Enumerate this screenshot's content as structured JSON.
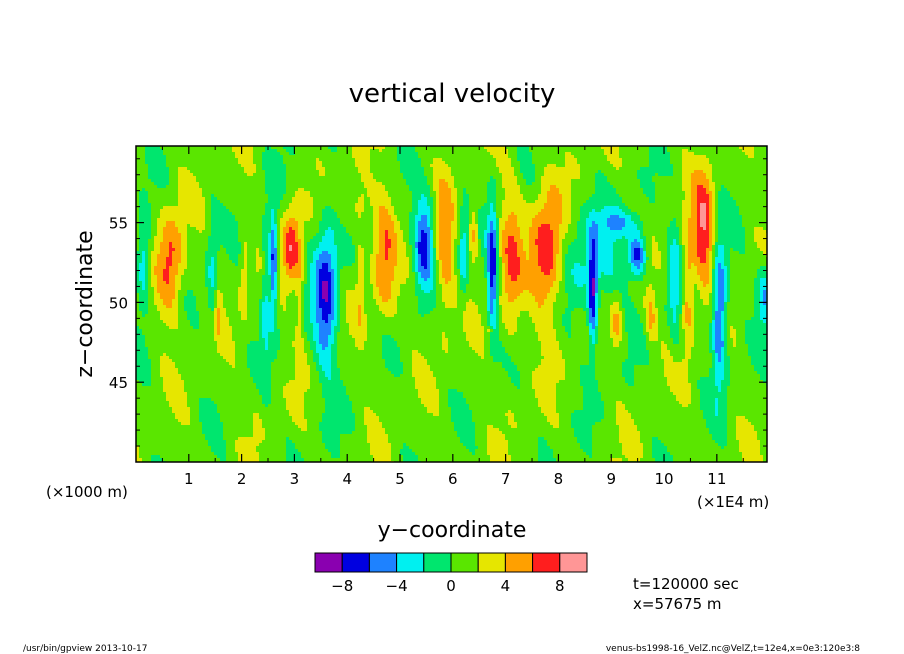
{
  "chart_data": {
    "type": "heatmap",
    "title": "vertical velocity",
    "xlabel": "y−coordinate",
    "ylabel": "z−coordinate",
    "x_unit_left": "(×1000 m)",
    "x_unit_right": "(×1E4 m)",
    "xlim": [
      0,
      11.95
    ],
    "ylim": [
      40,
      59.8
    ],
    "xticks": [
      1,
      2,
      3,
      4,
      5,
      6,
      7,
      8,
      9,
      10,
      11
    ],
    "xtick_labels": [
      "1",
      "2",
      "3",
      "4",
      "5",
      "6",
      "7",
      "8",
      "9",
      "10",
      "11"
    ],
    "yticks": [
      45,
      50,
      55
    ],
    "ytick_labels": [
      "45",
      "50",
      "55"
    ],
    "colorbar": {
      "levels": [
        -10,
        -8,
        -6,
        -4,
        -2,
        0,
        2,
        4,
        6,
        8,
        10
      ],
      "labels": [
        "−8",
        "−4",
        "0",
        "4",
        "8"
      ],
      "label_values": [
        -8,
        -4,
        0,
        4,
        8
      ],
      "colors": [
        "#8a00b0",
        "#0000e0",
        "#1e82ff",
        "#00f0f0",
        "#00e66e",
        "#5ae600",
        "#e6e600",
        "#ffa000",
        "#ff1e1e",
        "#ff9696"
      ]
    },
    "background_value": 1,
    "features": [
      {
        "y": 0.15,
        "z": 52.5,
        "amp": -5.5,
        "sy": 0.1,
        "sz": 2.0
      },
      {
        "y": 0.65,
        "z": 52.3,
        "amp": 6.0,
        "sy": 0.18,
        "sz": 2.3
      },
      {
        "y": 1.45,
        "z": 51.5,
        "amp": -3.5,
        "sy": 0.08,
        "sz": 3.0
      },
      {
        "y": 1.55,
        "z": 49.5,
        "amp": 3.0,
        "sy": 0.05,
        "sz": 1.5
      },
      {
        "y": 2.05,
        "z": 51.8,
        "amp": 2.5,
        "sy": 0.06,
        "sz": 2.0
      },
      {
        "y": 2.45,
        "z": 50.8,
        "amp": -3.5,
        "sy": 0.05,
        "sz": 3.8
      },
      {
        "y": 2.6,
        "z": 52.5,
        "amp": -8.5,
        "sy": 0.06,
        "sz": 2.5
      },
      {
        "y": 2.95,
        "z": 53.5,
        "amp": 6.5,
        "sy": 0.12,
        "sz": 1.8
      },
      {
        "y": 3.1,
        "z": 50.0,
        "amp": 2.5,
        "sy": 0.05,
        "sz": 2.5
      },
      {
        "y": 3.6,
        "z": 50.5,
        "amp": -8.5,
        "sy": 0.16,
        "sz": 3.2
      },
      {
        "y": 4.25,
        "z": 51.5,
        "amp": 2.5,
        "sy": 0.06,
        "sz": 3.0
      },
      {
        "y": 4.7,
        "z": 53.0,
        "amp": 4.5,
        "sy": 0.15,
        "sz": 2.8
      },
      {
        "y": 5.45,
        "z": 53.8,
        "amp": -8.0,
        "sy": 0.13,
        "sz": 2.0
      },
      {
        "y": 5.85,
        "z": 53.0,
        "amp": 4.5,
        "sy": 0.12,
        "sz": 3.0
      },
      {
        "y": 6.2,
        "z": 53.0,
        "amp": -4.5,
        "sy": 0.06,
        "sz": 2.0
      },
      {
        "y": 6.4,
        "z": 54.5,
        "amp": 4.5,
        "sy": 0.06,
        "sz": 1.2
      },
      {
        "y": 6.75,
        "z": 52.0,
        "amp": -8.5,
        "sy": 0.07,
        "sz": 2.8
      },
      {
        "y": 7.1,
        "z": 52.5,
        "amp": 4.5,
        "sy": 0.15,
        "sz": 3.5
      },
      {
        "y": 6.7,
        "z": 48.2,
        "amp": 3.5,
        "sy": 0.05,
        "sz": 0.25
      },
      {
        "y": 7.8,
        "z": 53.0,
        "amp": 7.5,
        "sy": 0.22,
        "sz": 2.8
      },
      {
        "y": 8.6,
        "z": 52.5,
        "amp": -3.5,
        "sy": 0.45,
        "sz": 2.5
      },
      {
        "y": 8.65,
        "z": 50.3,
        "amp": -8.0,
        "sy": 0.06,
        "sz": 2.5
      },
      {
        "y": 9.5,
        "z": 53.0,
        "amp": -8.0,
        "sy": 0.12,
        "sz": 1.0
      },
      {
        "y": 9.1,
        "z": 48.8,
        "amp": 4.0,
        "sy": 0.07,
        "sz": 1.2
      },
      {
        "y": 9.75,
        "z": 49.0,
        "amp": 3.5,
        "sy": 0.07,
        "sz": 1.2
      },
      {
        "y": 10.2,
        "z": 51.5,
        "amp": -3.5,
        "sy": 0.08,
        "sz": 3.0
      },
      {
        "y": 10.75,
        "z": 54.5,
        "amp": 7.0,
        "sy": 0.16,
        "sz": 2.5
      },
      {
        "y": 11.05,
        "z": 49.5,
        "amp": -8.5,
        "sy": 0.1,
        "sz": 3.2
      },
      {
        "y": 10.45,
        "z": 50.5,
        "amp": 4.5,
        "sy": 0.07,
        "sz": 2.5
      },
      {
        "y": 11.9,
        "z": 50.5,
        "amp": -5.0,
        "sy": 0.1,
        "sz": 1.5
      },
      {
        "y": 4.2,
        "z": 56.0,
        "amp": 2.5,
        "sy": 0.15,
        "sz": 0.8
      },
      {
        "y": 9.2,
        "z": 55.0,
        "amp": -3.5,
        "sy": 0.3,
        "sz": 0.6
      }
    ]
  },
  "info": {
    "time": "t=120000 sec",
    "position": "x=57675 m"
  },
  "footer": {
    "left": "/usr/bin/gpview  2013-10-17",
    "right": "venus-bs1998-16_VelZ.nc@VelZ,t=12e4,x=0e3:120e3:8"
  }
}
